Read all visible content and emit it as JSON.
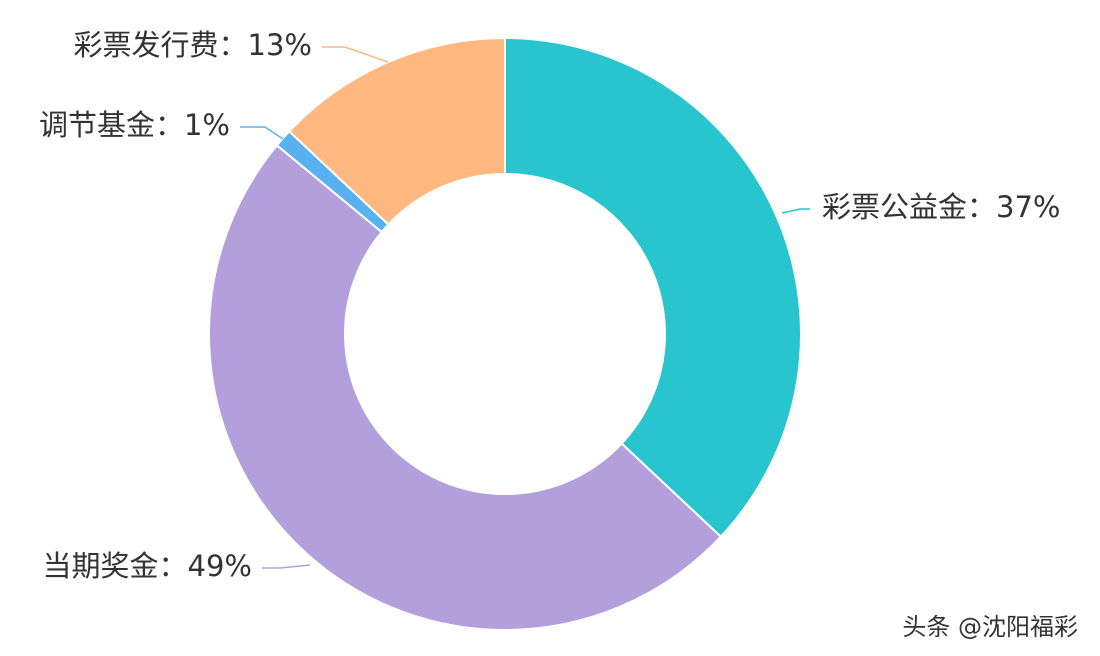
{
  "chart_data": {
    "type": "pie",
    "donut": true,
    "slices": [
      {
        "label": "彩票公益金",
        "value": 37,
        "display": "彩票公益金：37%",
        "color": "#29C5CE"
      },
      {
        "label": "当期奖金",
        "value": 49,
        "display": "当期奖金：49%",
        "color": "#B39FDB"
      },
      {
        "label": "调节基金",
        "value": 1,
        "display": "调节基金：1%",
        "color": "#5AB1EF"
      },
      {
        "label": "彩票发行费",
        "value": 13,
        "display": "彩票发行费：13%",
        "color": "#FFB880"
      }
    ],
    "legend": "none"
  },
  "watermark": "头条 @沈阳福彩"
}
